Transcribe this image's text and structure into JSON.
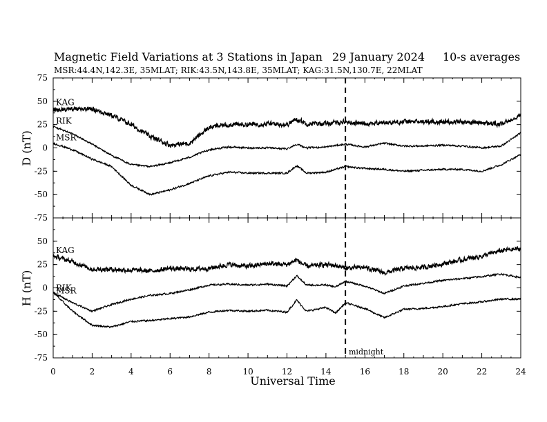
{
  "header": {
    "title": "Magnetic Field Variations at 3 Stations in Japan",
    "date": "29 January  2024",
    "averaging": "10-s averages",
    "stations_line": "MSR:44.4N,142.3E, 35MLAT;  RIK:43.5N,143.8E, 35MLAT;  KAG:31.5N,130.7E, 22MLAT"
  },
  "chart_data": [
    {
      "type": "line",
      "panel": "top",
      "ylabel": "D (nT)",
      "ylim": [
        -75,
        75
      ],
      "yticks": [
        "75",
        "50",
        "25",
        "0",
        "-25",
        "-50",
        "-75"
      ],
      "xlim": [
        0,
        24
      ],
      "station_labels": [
        "KAG",
        "RIK",
        "MSR"
      ],
      "x": [
        0,
        1,
        2,
        3,
        4,
        5,
        6,
        7,
        8,
        9,
        10,
        11,
        12,
        12.5,
        13,
        14,
        15,
        16,
        17,
        18,
        19,
        20,
        21,
        22,
        23,
        24
      ],
      "series": [
        {
          "name": "KAG",
          "noise": 2.2,
          "values": [
            40,
            42,
            42,
            35,
            25,
            12,
            3,
            5,
            22,
            25,
            25,
            26,
            25,
            31,
            26,
            26,
            28,
            26,
            27,
            28,
            28,
            28,
            28,
            27,
            25,
            36
          ]
        },
        {
          "name": "RIK",
          "noise": 0.8,
          "values": [
            23,
            15,
            4,
            -8,
            -18,
            -20,
            -16,
            -10,
            -2,
            1,
            0,
            0,
            -1,
            4,
            0,
            1,
            4,
            1,
            5,
            2,
            2,
            3,
            2,
            0,
            2,
            16
          ]
        },
        {
          "name": "MSR",
          "noise": 0.8,
          "values": [
            5,
            -2,
            -12,
            -20,
            -40,
            -50,
            -45,
            -38,
            -30,
            -26,
            -27,
            -27,
            -27,
            -19,
            -27,
            -26,
            -20,
            -22,
            -23,
            -25,
            -24,
            -23,
            -23,
            -25,
            -18,
            -7
          ]
        }
      ]
    },
    {
      "type": "line",
      "panel": "bottom",
      "ylabel": "H (nT)",
      "ylim": [
        -75,
        75
      ],
      "yticks": [
        "50",
        "25",
        "0",
        "-25",
        "-50",
        "-75"
      ],
      "xlim": [
        0,
        24
      ],
      "xticks": [
        "0",
        "2",
        "4",
        "6",
        "8",
        "10",
        "12",
        "14",
        "16",
        "18",
        "20",
        "22",
        "24"
      ],
      "xlabel": "Universal Time",
      "station_labels": [
        "KAG",
        "RIK",
        "MSR"
      ],
      "x": [
        0,
        1,
        2,
        3,
        4,
        5,
        6,
        7,
        8,
        9,
        10,
        11,
        12,
        12.5,
        13,
        14,
        14.5,
        15,
        16,
        17,
        18,
        19,
        20,
        21,
        22,
        23,
        24
      ],
      "series": [
        {
          "name": "KAG",
          "noise": 2.2,
          "values": [
            34,
            28,
            20,
            20,
            19,
            18,
            21,
            20,
            21,
            25,
            23,
            26,
            25,
            30,
            23,
            25,
            24,
            21,
            22,
            16,
            21,
            22,
            26,
            30,
            34,
            40,
            42
          ]
        },
        {
          "name": "RIK",
          "noise": 0.8,
          "values": [
            -5,
            -16,
            -25,
            -18,
            -12,
            -8,
            -6,
            -2,
            3,
            4,
            3,
            4,
            2,
            13,
            3,
            3,
            1,
            7,
            2,
            -6,
            2,
            5,
            8,
            10,
            12,
            15,
            11
          ]
        },
        {
          "name": "MSR",
          "noise": 0.8,
          "values": [
            -5,
            -25,
            -40,
            -42,
            -36,
            -35,
            -33,
            -31,
            -26,
            -24,
            -25,
            -24,
            -26,
            -13,
            -25,
            -21,
            -27,
            -16,
            -22,
            -32,
            -23,
            -22,
            -20,
            -17,
            -15,
            -12,
            -12
          ]
        }
      ]
    }
  ],
  "annotation": {
    "midnight_ut": 15,
    "label": "midnight"
  }
}
